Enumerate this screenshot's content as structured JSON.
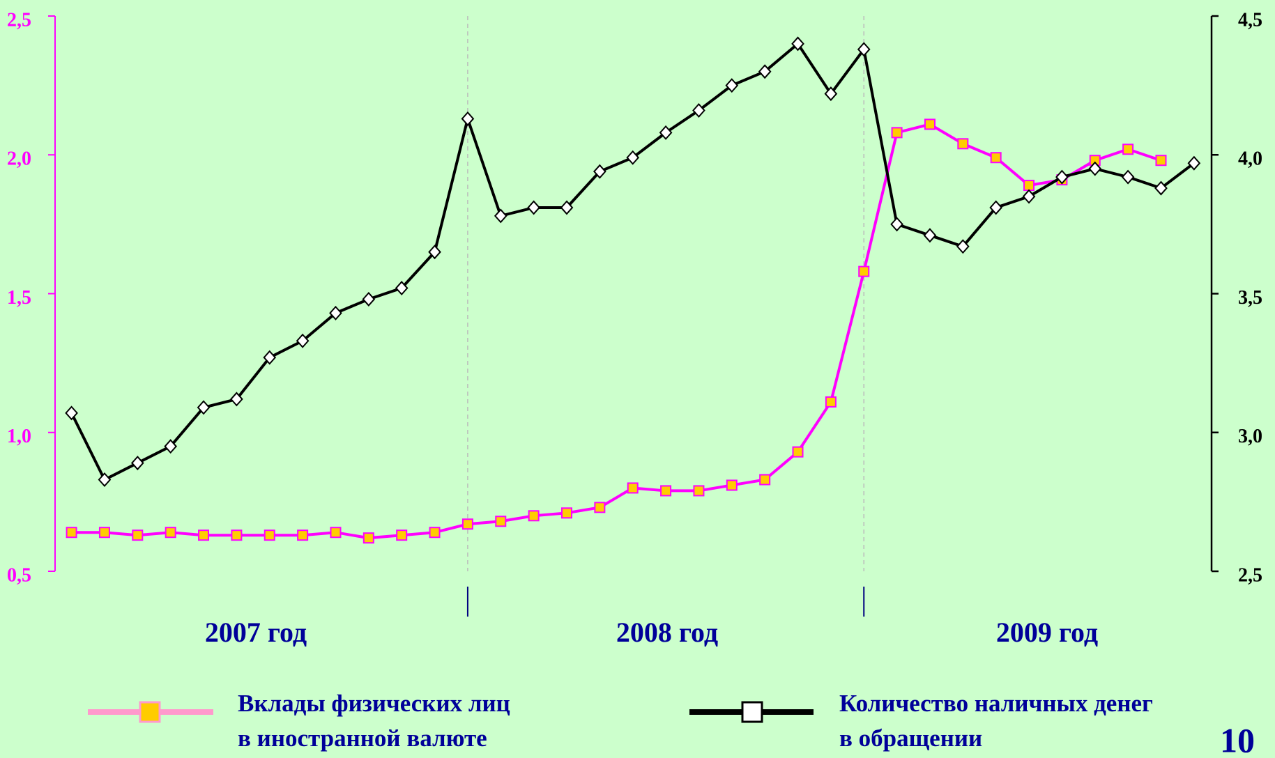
{
  "chart_data": {
    "type": "line",
    "categories": [
      null,
      null,
      null,
      null,
      null,
      null,
      null,
      null,
      null,
      null,
      null,
      null,
      null,
      null,
      null,
      null,
      null,
      null,
      null,
      null,
      null,
      null,
      null,
      null,
      null,
      null,
      null,
      null,
      null,
      null,
      null,
      null,
      null,
      null,
      null
    ],
    "year_labels": [
      "2007 год",
      "2008 год",
      "2009 год"
    ],
    "series": [
      {
        "name": "Вклады физических лиц в иностранной валюте",
        "color": "#ff00ff",
        "marker_color": "#ffcc00",
        "axis": "y",
        "values": [
          0.64,
          0.64,
          0.63,
          0.64,
          0.63,
          0.63,
          0.63,
          0.63,
          0.64,
          0.62,
          0.63,
          0.64,
          0.67,
          0.68,
          0.7,
          0.71,
          0.73,
          0.8,
          0.79,
          0.79,
          0.81,
          0.83,
          0.93,
          1.11,
          1.58,
          2.08,
          2.11,
          2.04,
          1.99,
          1.89,
          1.91,
          1.98,
          2.02,
          1.98,
          null
        ]
      },
      {
        "name": "Количество наличных денег в обращении",
        "color": "#000000",
        "marker_color": "#ffffff",
        "axis": "y2",
        "values": [
          3.07,
          2.83,
          2.89,
          2.95,
          3.09,
          3.12,
          3.27,
          3.33,
          3.43,
          3.48,
          3.52,
          3.65,
          4.13,
          3.78,
          3.81,
          3.81,
          3.94,
          3.99,
          4.08,
          4.16,
          4.25,
          4.3,
          4.4,
          4.22,
          4.38,
          3.75,
          3.71,
          3.67,
          3.81,
          3.85,
          3.92,
          3.95,
          3.92,
          3.88,
          3.97
        ]
      }
    ],
    "ylim": [
      0.5,
      2.5
    ],
    "yticks": [
      {
        "value": 0.5,
        "label": "0,5"
      },
      {
        "value": 1.0,
        "label": "1,0"
      },
      {
        "value": 1.5,
        "label": "1,5"
      },
      {
        "value": 2.0,
        "label": "2,0"
      },
      {
        "value": 2.5,
        "label": "2,5"
      }
    ],
    "y2lim": [
      2.5,
      4.5
    ],
    "y2ticks": [
      {
        "value": 2.5,
        "label": "2,5"
      },
      {
        "value": 3.0,
        "label": "3,0"
      },
      {
        "value": 3.5,
        "label": "3,5"
      },
      {
        "value": 4.0,
        "label": "4,0"
      },
      {
        "value": 4.5,
        "label": "4,5"
      }
    ],
    "page_number": "10"
  }
}
